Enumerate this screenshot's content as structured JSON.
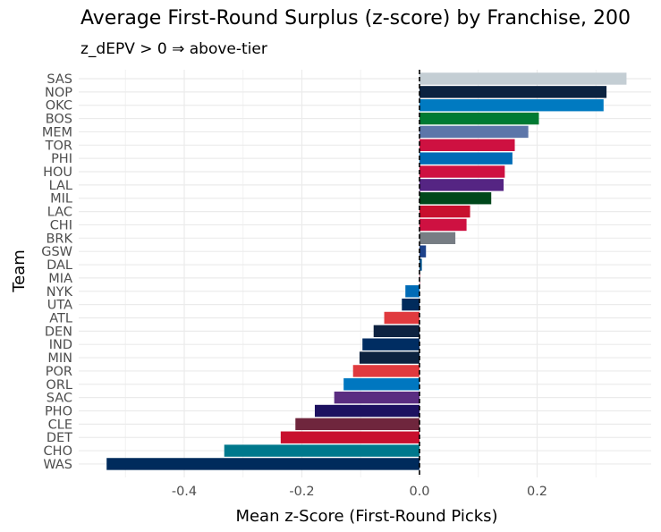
{
  "chart_data": {
    "type": "bar",
    "orientation": "horizontal",
    "title": "Average First-Round Surplus (z-score) by Franchise, 200",
    "subtitle": "z_dEPV > 0  ⇒  above-tier",
    "xlabel": "Mean z-Score (First-Round Picks)",
    "ylabel": "Team",
    "xlim": [
      -0.56,
      0.395
    ],
    "xticks": [
      -0.4,
      -0.2,
      0.0,
      0.2
    ],
    "xtick_labels": [
      "-0.4",
      "-0.2",
      "0.0",
      "0.2"
    ],
    "grid": true,
    "reference_line": 0,
    "categories": [
      "SAS",
      "NOP",
      "OKC",
      "BOS",
      "MEM",
      "TOR",
      "PHI",
      "HOU",
      "LAL",
      "MIL",
      "LAC",
      "CHI",
      "BRK",
      "GSW",
      "DAL",
      "MIA",
      "NYK",
      "UTA",
      "ATL",
      "DEN",
      "IND",
      "MIN",
      "POR",
      "ORL",
      "SAC",
      "PHO",
      "CLE",
      "DET",
      "CHO",
      "WAS"
    ],
    "values": [
      0.352,
      0.318,
      0.313,
      0.203,
      0.185,
      0.162,
      0.158,
      0.145,
      0.143,
      0.122,
      0.086,
      0.08,
      0.061,
      0.011,
      0.004,
      0.0,
      -0.024,
      -0.03,
      -0.06,
      -0.078,
      -0.097,
      -0.102,
      -0.113,
      -0.129,
      -0.145,
      -0.178,
      -0.211,
      -0.236,
      -0.332,
      -0.532
    ],
    "colors": [
      "#c4ced4",
      "#0c2340",
      "#007ac1",
      "#007a33",
      "#5d76a9",
      "#ce1141",
      "#006bb6",
      "#ce1141",
      "#552583",
      "#00471b",
      "#c8102e",
      "#ce1141",
      "#777d84",
      "#1d428a",
      "#00538c",
      "#98002e",
      "#006bb6",
      "#002b5c",
      "#e03a3e",
      "#0e2240",
      "#002d62",
      "#0c2340",
      "#e03a3e",
      "#0077c0",
      "#5a2d81",
      "#1d1160",
      "#6f263d",
      "#c8102e",
      "#00788c",
      "#002b5c"
    ]
  }
}
